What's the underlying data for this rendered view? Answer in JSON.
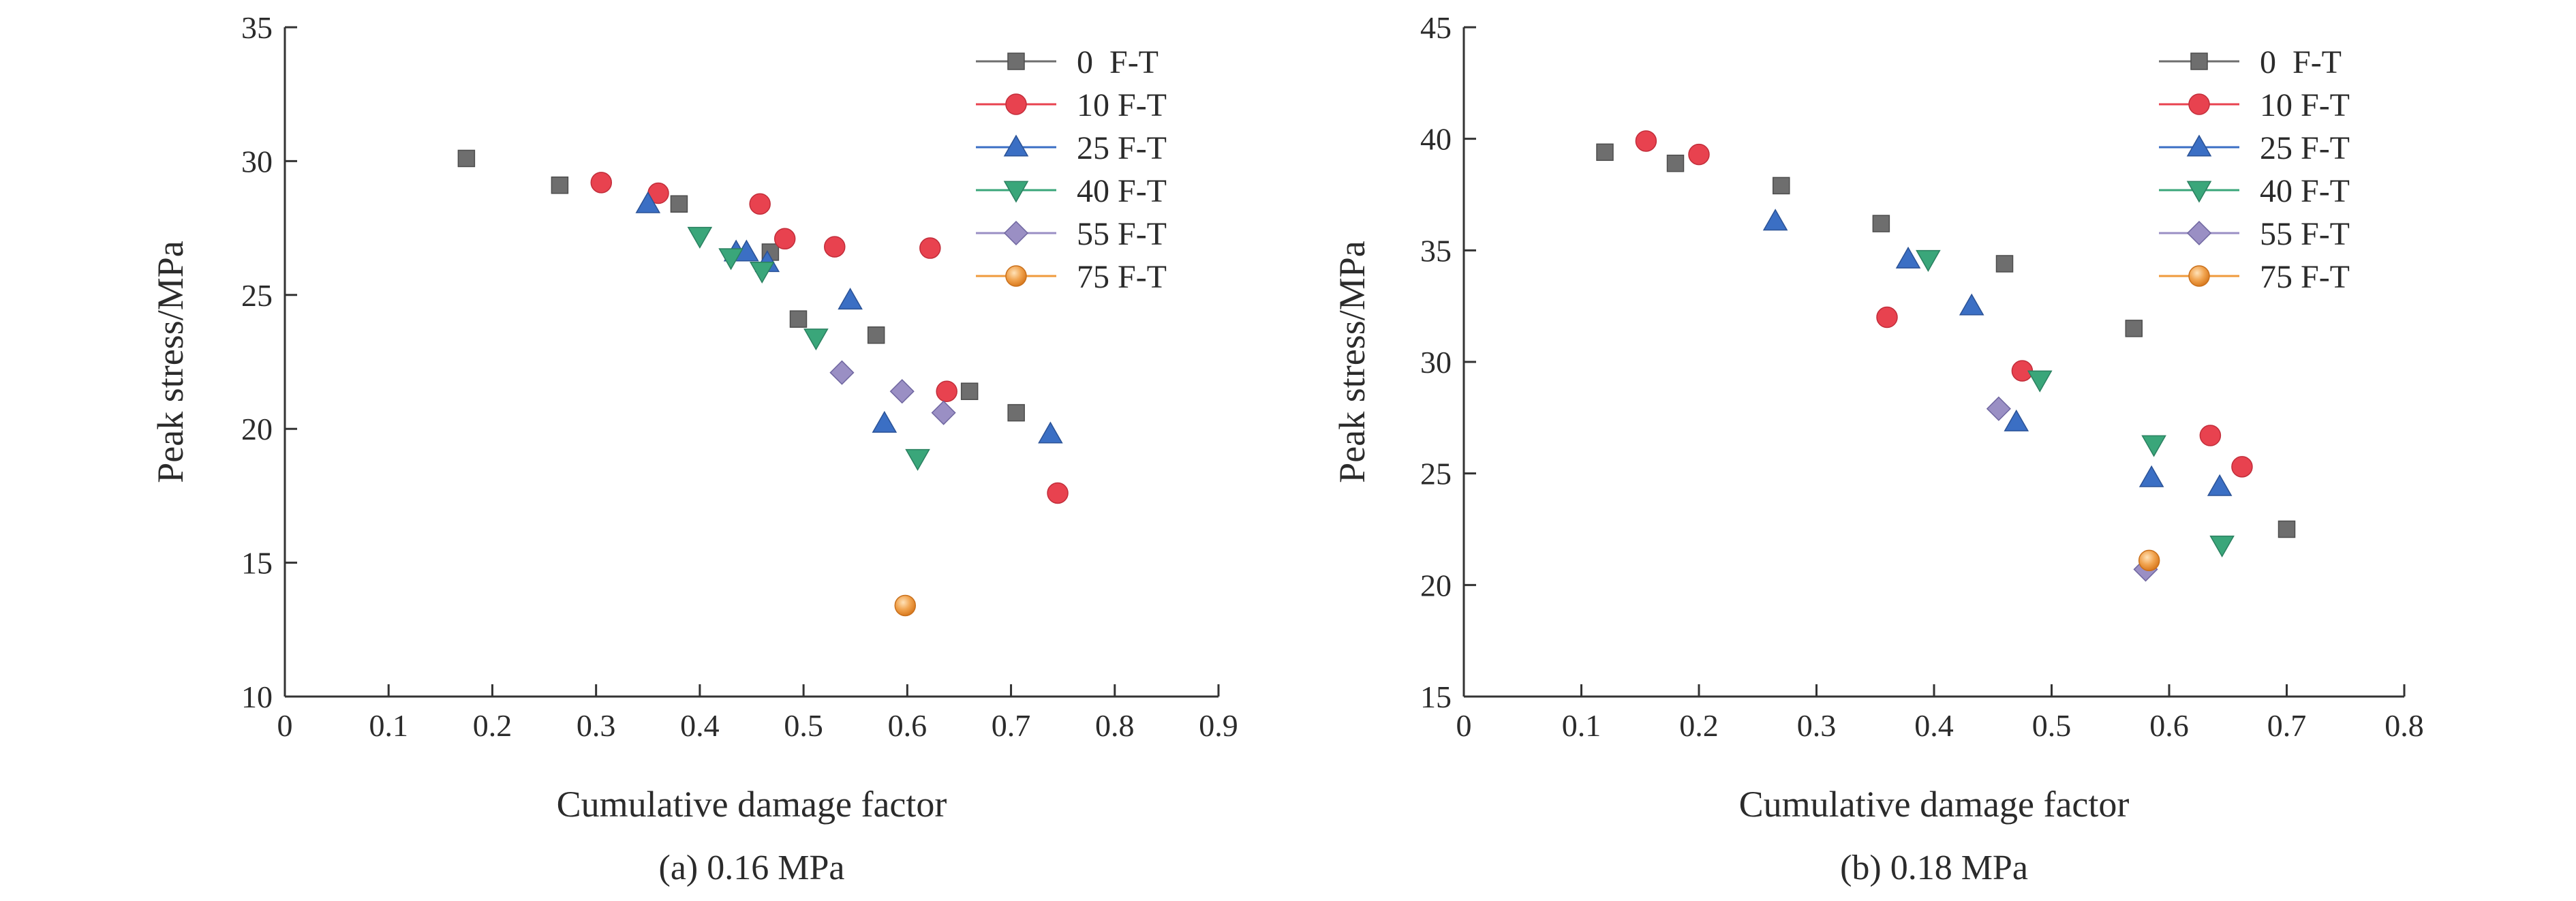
{
  "chart_data": [
    {
      "type": "scatter",
      "caption": "(a) 0.16 MPa",
      "xlabel": "Cumulative damage factor",
      "ylabel": "Peak stress/MPa",
      "xlim": [
        0,
        0.9
      ],
      "ylim": [
        10,
        35
      ],
      "xticks": [
        0,
        0.1,
        0.2,
        0.3,
        0.4,
        0.5,
        0.6,
        0.7,
        0.8,
        0.9
      ],
      "yticks": [
        10,
        15,
        20,
        25,
        30,
        35
      ],
      "grid": false,
      "legend_position": "top-right",
      "series": [
        {
          "name": "0  F-T",
          "marker": "square",
          "color": "#6e6e6e",
          "points": [
            [
              0.175,
              30.1
            ],
            [
              0.265,
              29.1
            ],
            [
              0.38,
              28.4
            ],
            [
              0.468,
              26.6
            ],
            [
              0.495,
              24.1
            ],
            [
              0.57,
              23.5
            ],
            [
              0.66,
              21.4
            ],
            [
              0.705,
              20.6
            ]
          ]
        },
        {
          "name": "10 F-T",
          "marker": "circle",
          "color": "#e8424f",
          "points": [
            [
              0.305,
              29.2
            ],
            [
              0.36,
              28.8
            ],
            [
              0.458,
              28.4
            ],
            [
              0.482,
              27.1
            ],
            [
              0.53,
              26.8
            ],
            [
              0.622,
              26.75
            ],
            [
              0.638,
              21.4
            ],
            [
              0.745,
              17.6
            ]
          ]
        },
        {
          "name": "25 F-T",
          "marker": "triangle-up",
          "color": "#3b6fc4",
          "points": [
            [
              0.35,
              28.4
            ],
            [
              0.435,
              26.6
            ],
            [
              0.445,
              26.6
            ],
            [
              0.465,
              26.2
            ],
            [
              0.545,
              24.8
            ],
            [
              0.578,
              20.2
            ],
            [
              0.738,
              19.8
            ]
          ]
        },
        {
          "name": "40 F-T",
          "marker": "triangle-down",
          "color": "#3aa67a",
          "points": [
            [
              0.4,
              27.2
            ],
            [
              0.43,
              26.4
            ],
            [
              0.46,
              25.9
            ],
            [
              0.512,
              23.4
            ],
            [
              0.61,
              18.9
            ]
          ]
        },
        {
          "name": "55 F-T",
          "marker": "diamond",
          "color": "#9a8fc4",
          "points": [
            [
              0.537,
              22.1
            ],
            [
              0.595,
              21.4
            ],
            [
              0.635,
              20.6
            ]
          ]
        },
        {
          "name": "75 F-T",
          "marker": "circle",
          "color": "#ef9a3c",
          "points": [
            [
              0.598,
              13.4
            ]
          ]
        }
      ]
    },
    {
      "type": "scatter",
      "caption": "(b) 0.18 MPa",
      "xlabel": "Cumulative damage factor",
      "ylabel": "Peak stress/MPa",
      "xlim": [
        0,
        0.8
      ],
      "ylim": [
        15,
        45
      ],
      "xticks": [
        0,
        0.1,
        0.2,
        0.3,
        0.4,
        0.5,
        0.6,
        0.7,
        0.8
      ],
      "yticks": [
        15,
        20,
        25,
        30,
        35,
        40,
        45
      ],
      "grid": false,
      "legend_position": "top-right",
      "series": [
        {
          "name": "0  F-T",
          "marker": "square",
          "color": "#6e6e6e",
          "points": [
            [
              0.12,
              39.4
            ],
            [
              0.18,
              38.9
            ],
            [
              0.27,
              37.9
            ],
            [
              0.355,
              36.2
            ],
            [
              0.46,
              34.4
            ],
            [
              0.57,
              31.5
            ],
            [
              0.7,
              22.5
            ]
          ]
        },
        {
          "name": "10 F-T",
          "marker": "circle",
          "color": "#e8424f",
          "points": [
            [
              0.155,
              39.9
            ],
            [
              0.2,
              39.3
            ],
            [
              0.36,
              32.0
            ],
            [
              0.475,
              29.6
            ],
            [
              0.635,
              26.7
            ],
            [
              0.662,
              25.3
            ]
          ]
        },
        {
          "name": "25 F-T",
          "marker": "triangle-up",
          "color": "#3b6fc4",
          "points": [
            [
              0.265,
              36.3
            ],
            [
              0.378,
              34.6
            ],
            [
              0.432,
              32.5
            ],
            [
              0.47,
              27.3
            ],
            [
              0.585,
              24.8
            ],
            [
              0.643,
              24.4
            ]
          ]
        },
        {
          "name": "40 F-T",
          "marker": "triangle-down",
          "color": "#3aa67a",
          "points": [
            [
              0.395,
              34.6
            ],
            [
              0.49,
              29.2
            ],
            [
              0.587,
              26.3
            ],
            [
              0.645,
              21.8
            ]
          ]
        },
        {
          "name": "55 F-T",
          "marker": "diamond",
          "color": "#9a8fc4",
          "points": [
            [
              0.455,
              27.9
            ],
            [
              0.58,
              20.7
            ]
          ]
        },
        {
          "name": "75 F-T",
          "marker": "circle",
          "color": "#ef9a3c",
          "points": [
            [
              0.583,
              21.1
            ]
          ]
        }
      ]
    }
  ]
}
